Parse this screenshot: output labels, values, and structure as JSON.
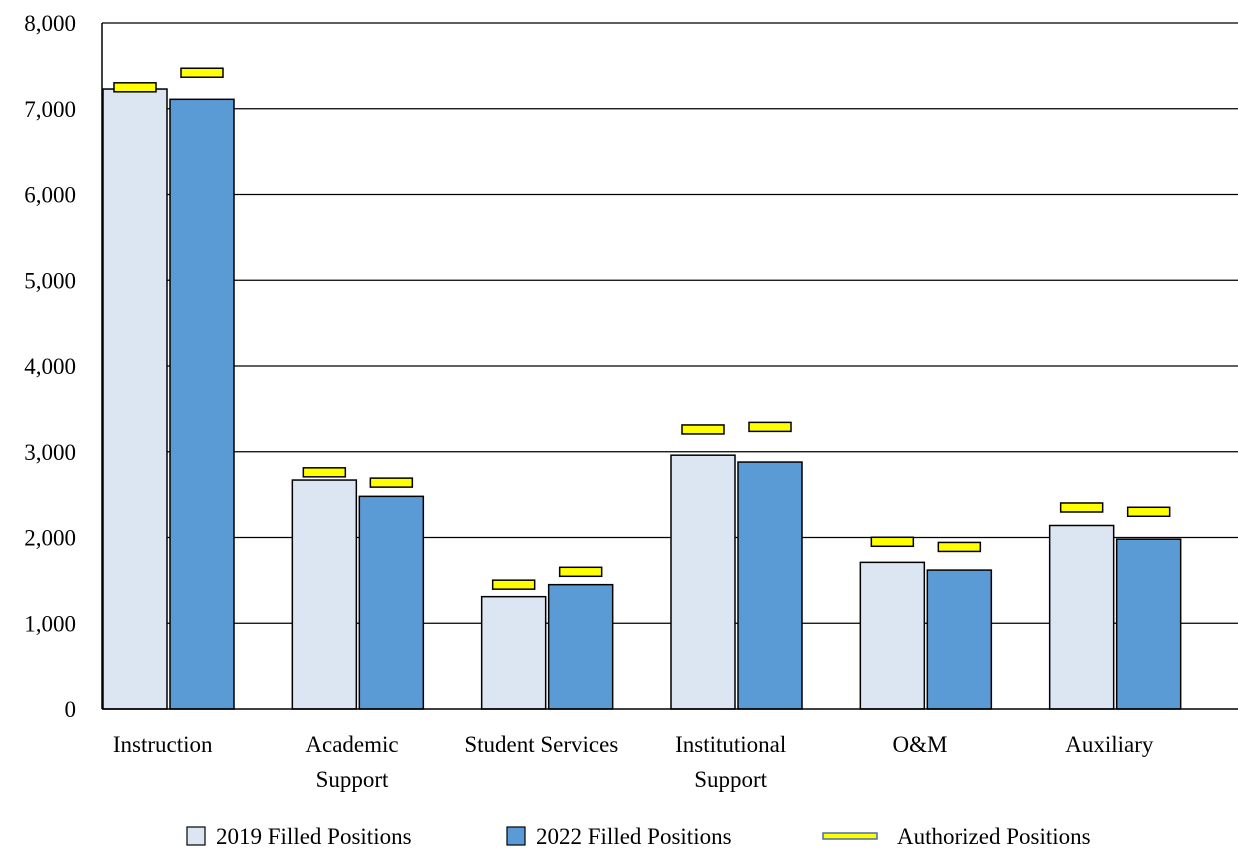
{
  "chart_data": {
    "type": "bar",
    "title": "",
    "xlabel": "",
    "ylabel": "",
    "ylim": [
      0,
      8000
    ],
    "yticks": [
      0,
      1000,
      2000,
      3000,
      4000,
      5000,
      6000,
      7000,
      8000
    ],
    "ytick_labels": [
      "0",
      "1,000",
      "2,000",
      "3,000",
      "4,000",
      "5,000",
      "6,000",
      "7,000",
      "8,000"
    ],
    "grid": true,
    "legend_position": "bottom",
    "categories": [
      [
        "Instruction"
      ],
      [
        "Academic",
        "Support"
      ],
      [
        "Student Services"
      ],
      [
        "Institutional",
        "Support"
      ],
      [
        "O&M"
      ],
      [
        "Auxiliary"
      ]
    ],
    "series": [
      {
        "name": "2019 Filled Positions",
        "kind": "bar",
        "color": "#dce6f2",
        "values": [
          7230,
          2670,
          1310,
          2960,
          1710,
          2140
        ]
      },
      {
        "name": "2022 Filled Positions",
        "kind": "bar",
        "color": "#5b9bd5",
        "values": [
          7110,
          2480,
          1450,
          2880,
          1620,
          1980
        ]
      },
      {
        "name": "Authorized Positions",
        "kind": "marker",
        "color": "#ffff00",
        "values": [
          [
            7250,
            7420
          ],
          [
            2760,
            2640
          ],
          [
            1450,
            1600
          ],
          [
            3260,
            3290
          ],
          [
            1950,
            1890
          ],
          [
            2350,
            2300
          ]
        ]
      }
    ]
  }
}
